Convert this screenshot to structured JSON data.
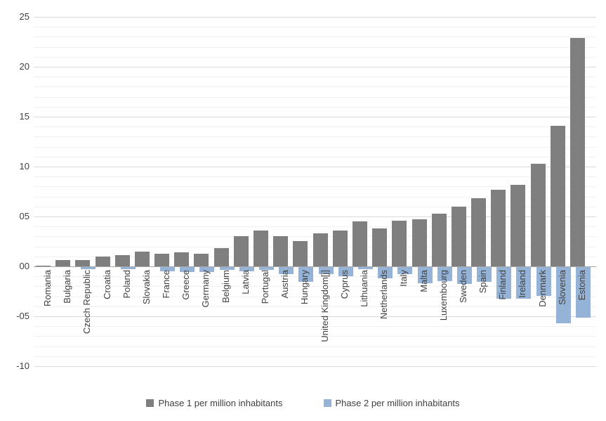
{
  "chart_data": {
    "type": "bar",
    "categories": [
      "Romania",
      "Bulgaria",
      "Czech Republic",
      "Croatia",
      "Poland",
      "Slovakia",
      "France",
      "Greece",
      "Germany",
      "Belgium",
      "Latvia",
      "Portugal",
      "Austria",
      "Hungary",
      "United Kingdom[j]",
      "Cyprus",
      "Lithuania",
      "Netherlands",
      "Italy",
      "Malta",
      "Luxembourg",
      "Sweden",
      "Spain",
      "Finland",
      "Ireland",
      "Denmark",
      "Slovenia",
      "Estonia"
    ],
    "series": [
      {
        "name": "Phase 1 per million inhabitants",
        "color": "#7f7f7f",
        "values": [
          0.1,
          0.6,
          0.6,
          1.0,
          1.1,
          1.5,
          1.3,
          1.4,
          1.3,
          1.8,
          3.0,
          3.6,
          3.0,
          2.5,
          3.3,
          3.6,
          4.5,
          3.8,
          4.6,
          4.7,
          5.3,
          6.0,
          6.8,
          7.7,
          8.2,
          10.3,
          14.1,
          22.9
        ]
      },
      {
        "name": "Phase 2 per million inhabitants",
        "color": "#95b3d7",
        "values": [
          0,
          0,
          -0.2,
          0,
          -0.2,
          0,
          -0.4,
          -0.5,
          -0.5,
          -0.3,
          -0.4,
          -0.3,
          -0.7,
          -1.5,
          -0.7,
          -0.9,
          -0.2,
          -1.1,
          -0.7,
          -1.6,
          -1.4,
          -1.7,
          -1.5,
          -3.2,
          -3.2,
          -2.9,
          -5.6,
          -5.1
        ]
      }
    ],
    "title": "",
    "xlabel": "",
    "ylabel": "",
    "ylim": [
      -10,
      25
    ],
    "yticks": {
      "values": [
        25,
        20,
        15,
        10,
        5,
        0,
        -5,
        -10
      ],
      "labels": [
        "25",
        "20",
        "15",
        "10",
        "05",
        "00",
        "-05",
        "-10"
      ]
    },
    "grid": {
      "major_step": 5,
      "minor_step": 1,
      "shown": true
    },
    "legend_position": "bottom"
  },
  "legend": {
    "items": [
      {
        "label": "Phase 1 per million inhabitants",
        "color": "#7f7f7f"
      },
      {
        "label": "Phase 2 per million inhabitants",
        "color": "#95b3d7"
      }
    ]
  }
}
